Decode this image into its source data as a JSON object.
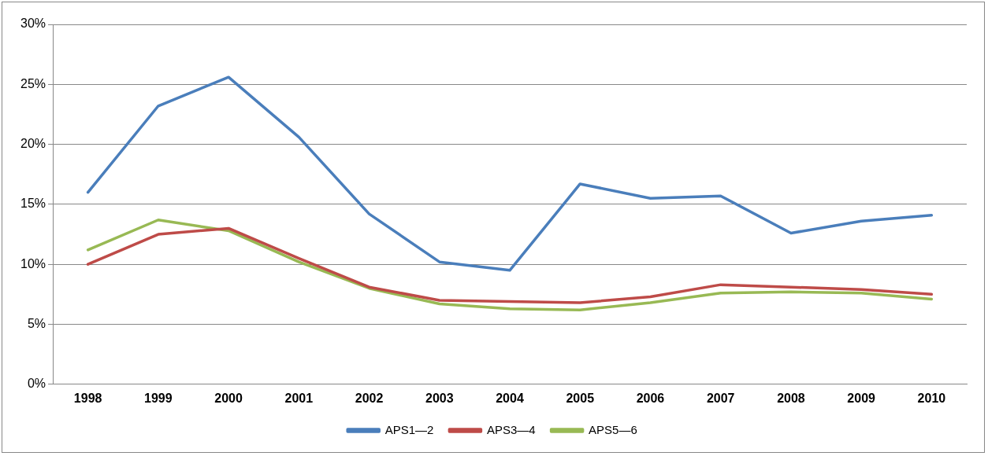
{
  "chart_data": {
    "type": "line",
    "categories": [
      "1998",
      "1999",
      "2000",
      "2001",
      "2002",
      "2003",
      "2004",
      "2005",
      "2006",
      "2007",
      "2008",
      "2009",
      "2010"
    ],
    "series": [
      {
        "name": "APS1—2",
        "color": "#4a7ebb",
        "values": [
          16.0,
          23.2,
          25.6,
          20.6,
          14.2,
          10.2,
          9.5,
          16.7,
          15.5,
          15.7,
          12.6,
          13.6,
          14.1
        ]
      },
      {
        "name": "APS3—4",
        "color": "#be4b48",
        "values": [
          10.0,
          12.5,
          13.0,
          10.5,
          8.1,
          7.0,
          6.9,
          6.8,
          7.3,
          8.3,
          8.1,
          7.9,
          7.5
        ]
      },
      {
        "name": "APS5—6",
        "color": "#98b954",
        "values": [
          11.2,
          13.7,
          12.8,
          10.2,
          8.0,
          6.7,
          6.3,
          6.2,
          6.8,
          7.6,
          7.7,
          7.6,
          7.1
        ]
      }
    ],
    "ylim": [
      0,
      30
    ],
    "yticks": [
      {
        "value": 0,
        "label": "0%"
      },
      {
        "value": 5,
        "label": "5%"
      },
      {
        "value": 10,
        "label": "10%"
      },
      {
        "value": 15,
        "label": "15%"
      },
      {
        "value": 20,
        "label": "20%"
      },
      {
        "value": 25,
        "label": "25%"
      },
      {
        "value": 30,
        "label": "30%"
      }
    ],
    "grid": "y",
    "legend": "bottom",
    "marker": "none",
    "line_style": "solid"
  }
}
